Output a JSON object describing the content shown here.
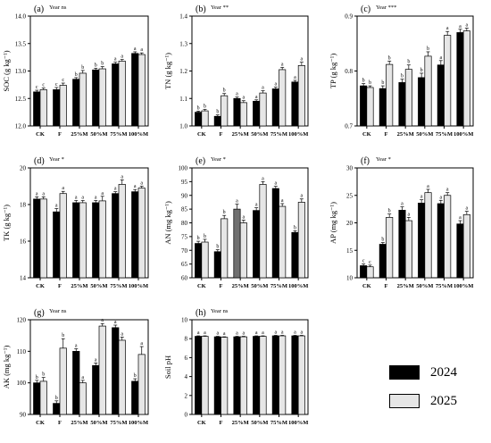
{
  "colors": {
    "series_2024": "#000000",
    "series_2025": "#e6e6e6",
    "highlight_bar": "#707070"
  },
  "legend": {
    "items": [
      {
        "label": "2024"
      },
      {
        "label": "2025"
      }
    ]
  },
  "chart_data": [
    {
      "panel": "(a)",
      "note": "Year ns",
      "type": "bar",
      "ylabel": "SOC (g kg⁻¹)",
      "categories": [
        "CK",
        "F",
        "25%M",
        "50%M",
        "75%M",
        "100%M"
      ],
      "ylim": [
        12.0,
        14.0
      ],
      "yticks": [
        12.0,
        12.5,
        13.0,
        13.5,
        14.0
      ],
      "tick_decimals": 1,
      "series": [
        {
          "name": "2024",
          "values": [
            12.62,
            12.66,
            12.85,
            13.02,
            13.13,
            13.32
          ],
          "errors": [
            0.03,
            0.04,
            0.03,
            0.03,
            0.03,
            0.03
          ],
          "labels": [
            "c",
            "c",
            "b",
            "b",
            "a",
            "a"
          ]
        },
        {
          "name": "2025",
          "values": [
            12.66,
            12.74,
            12.96,
            13.04,
            13.18,
            13.3
          ],
          "errors": [
            0.03,
            0.04,
            0.05,
            0.04,
            0.03,
            0.03
          ],
          "labels": [
            "c",
            "c",
            "b",
            "b",
            "a",
            "a"
          ]
        }
      ]
    },
    {
      "panel": "(b)",
      "note": "Year **",
      "type": "bar",
      "ylabel": "TN (g kg⁻¹)",
      "categories": [
        "CK",
        "F",
        "25%M",
        "50%M",
        "75%M",
        "100%M"
      ],
      "ylim": [
        1.0,
        1.4
      ],
      "yticks": [
        1.0,
        1.1,
        1.2,
        1.3,
        1.4
      ],
      "tick_decimals": 1,
      "series": [
        {
          "name": "2024",
          "values": [
            1.05,
            1.035,
            1.1,
            1.09,
            1.135,
            1.16
          ],
          "errors": [
            0.004,
            0.005,
            0.005,
            0.005,
            0.006,
            0.006
          ],
          "labels": [
            "b",
            "b",
            "a",
            "a",
            "a",
            "a"
          ]
        },
        {
          "name": "2025",
          "values": [
            1.055,
            1.11,
            1.085,
            1.12,
            1.205,
            1.22
          ],
          "errors": [
            0.005,
            0.008,
            0.007,
            0.008,
            0.008,
            0.012
          ],
          "labels": [
            "b",
            "b",
            "a",
            "a",
            "a",
            "a"
          ]
        }
      ]
    },
    {
      "panel": "(c)",
      "note": "Year ***",
      "type": "bar",
      "ylabel": "TP (g kg⁻¹)",
      "categories": [
        "CK",
        "F",
        "25%M",
        "50%M",
        "75%M",
        "100%M"
      ],
      "ylim": [
        0.7,
        0.9
      ],
      "yticks": [
        0.7,
        0.8,
        0.9
      ],
      "tick_decimals": 1,
      "series": [
        {
          "name": "2024",
          "values": [
            0.773,
            0.768,
            0.779,
            0.788,
            0.811,
            0.87
          ],
          "errors": [
            0.004,
            0.005,
            0.006,
            0.008,
            0.008,
            0.006
          ],
          "labels": [
            "b",
            "b",
            "b",
            "b",
            "a",
            "a"
          ]
        },
        {
          "name": "2025",
          "values": [
            0.77,
            0.812,
            0.803,
            0.827,
            0.865,
            0.873
          ],
          "errors": [
            0.003,
            0.006,
            0.008,
            0.008,
            0.007,
            0.005
          ],
          "labels": [
            "b",
            "b",
            "b",
            "b",
            "a",
            "a"
          ]
        }
      ]
    },
    {
      "panel": "(d)",
      "note": "Year *",
      "type": "bar",
      "ylabel": "TK (g kg⁻¹)",
      "categories": [
        "CK",
        "F",
        "25%M",
        "50%M",
        "75%M",
        "100%M"
      ],
      "ylim": [
        14,
        20
      ],
      "yticks": [
        14,
        16,
        18,
        20
      ],
      "tick_decimals": 0,
      "series": [
        {
          "name": "2024",
          "values": [
            18.3,
            17.6,
            18.1,
            18.1,
            18.6,
            18.7
          ],
          "errors": [
            0.12,
            0.18,
            0.12,
            0.12,
            0.1,
            0.12
          ],
          "labels": [
            "a",
            "a",
            "a",
            "a",
            "a",
            "a"
          ]
        },
        {
          "name": "2025",
          "values": [
            18.3,
            18.6,
            18.1,
            18.2,
            19.1,
            18.9
          ],
          "errors": [
            0.12,
            0.12,
            0.12,
            0.25,
            0.25,
            0.1
          ],
          "labels": [
            "a",
            "a",
            "a",
            "a",
            "a",
            "a"
          ]
        }
      ]
    },
    {
      "panel": "(e)",
      "note": "Year *",
      "type": "bar",
      "ylabel": "AN (mg kg⁻¹)",
      "categories": [
        "CK",
        "F",
        "25%M",
        "50%M",
        "75%M",
        "100%M"
      ],
      "ylim": [
        60,
        100
      ],
      "yticks": [
        60,
        65,
        70,
        75,
        80,
        85,
        90,
        95,
        100
      ],
      "tick_decimals": 0,
      "series": [
        {
          "name": "2024",
          "values": [
            72.5,
            69.5,
            85.0,
            84.5,
            92.5,
            76.5
          ],
          "errors": [
            0.8,
            0.7,
            1.8,
            1.0,
            0.8,
            0.6
          ],
          "labels": [
            "b",
            "b",
            "a",
            "a",
            "a",
            "b"
          ]
        },
        {
          "name": "2025",
          "values": [
            73.0,
            81.5,
            80.0,
            94.0,
            86.0,
            87.5
          ],
          "errors": [
            1.0,
            1.2,
            1.0,
            1.0,
            1.0,
            1.2
          ],
          "labels": [
            "b",
            "b",
            "a",
            "a",
            "a",
            "a"
          ]
        }
      ]
    },
    {
      "panel": "(f)",
      "note": "Year *",
      "type": "bar",
      "ylabel": "AP (mg kg⁻¹)",
      "categories": [
        "CK",
        "F",
        "25%M",
        "50%M",
        "75%M",
        "100%M"
      ],
      "ylim": [
        10,
        30
      ],
      "yticks": [
        10,
        15,
        20,
        25,
        30
      ],
      "tick_decimals": 0,
      "series": [
        {
          "name": "2024",
          "values": [
            12.2,
            16.1,
            22.3,
            23.6,
            23.5,
            19.8
          ],
          "errors": [
            0.3,
            0.3,
            0.6,
            0.6,
            0.6,
            0.6
          ],
          "labels": [
            "c",
            "b",
            "a",
            "a",
            "a",
            "a"
          ]
        },
        {
          "name": "2025",
          "values": [
            12.0,
            21.0,
            20.4,
            25.5,
            25.0,
            21.5
          ],
          "errors": [
            0.3,
            0.6,
            0.6,
            0.6,
            0.5,
            0.6
          ],
          "labels": [
            "c",
            "b",
            "a",
            "a",
            "a",
            "a"
          ]
        }
      ]
    },
    {
      "panel": "(g)",
      "note": "Year ns",
      "type": "bar",
      "ylabel": "AK (mg kg⁻¹)",
      "categories": [
        "CK",
        "F",
        "25%M",
        "50%M",
        "75%M",
        "100%M"
      ],
      "ylim": [
        90,
        120
      ],
      "yticks": [
        90,
        100,
        110,
        120
      ],
      "tick_decimals": 0,
      "series": [
        {
          "name": "2024",
          "values": [
            100.0,
            93.5,
            110.0,
            105.5,
            117.5,
            100.5
          ],
          "errors": [
            0.8,
            0.8,
            0.8,
            0.8,
            0.8,
            0.8
          ],
          "labels": [
            "b",
            "b",
            "a",
            "a",
            "a",
            "b"
          ]
        },
        {
          "name": "2025",
          "values": [
            100.5,
            111.0,
            100.0,
            118.0,
            113.5,
            109.0
          ],
          "errors": [
            1.2,
            3.0,
            0.8,
            0.8,
            1.0,
            2.5
          ],
          "labels": [
            "b",
            "b",
            "a",
            "a",
            "a",
            "a"
          ]
        }
      ]
    },
    {
      "panel": "(h)",
      "note": "Year ns",
      "type": "bar",
      "ylabel": "Soil pH",
      "categories": [
        "CK",
        "F",
        "25%M",
        "50%M",
        "75%M",
        "100%M"
      ],
      "ylim": [
        0,
        10
      ],
      "yticks": [
        0,
        2,
        4,
        6,
        8,
        10
      ],
      "tick_decimals": 0,
      "series": [
        {
          "name": "2024",
          "values": [
            8.25,
            8.2,
            8.2,
            8.25,
            8.3,
            8.3
          ],
          "errors": [
            0.05,
            0.05,
            0.05,
            0.05,
            0.05,
            0.05
          ],
          "labels": [
            "a",
            "a",
            "a",
            "a",
            "a",
            "a"
          ]
        },
        {
          "name": "2025",
          "values": [
            8.25,
            8.15,
            8.2,
            8.25,
            8.3,
            8.3
          ],
          "errors": [
            0.05,
            0.05,
            0.05,
            0.05,
            0.05,
            0.05
          ],
          "labels": [
            "a",
            "a",
            "a",
            "a",
            "a",
            "a"
          ]
        }
      ]
    }
  ]
}
